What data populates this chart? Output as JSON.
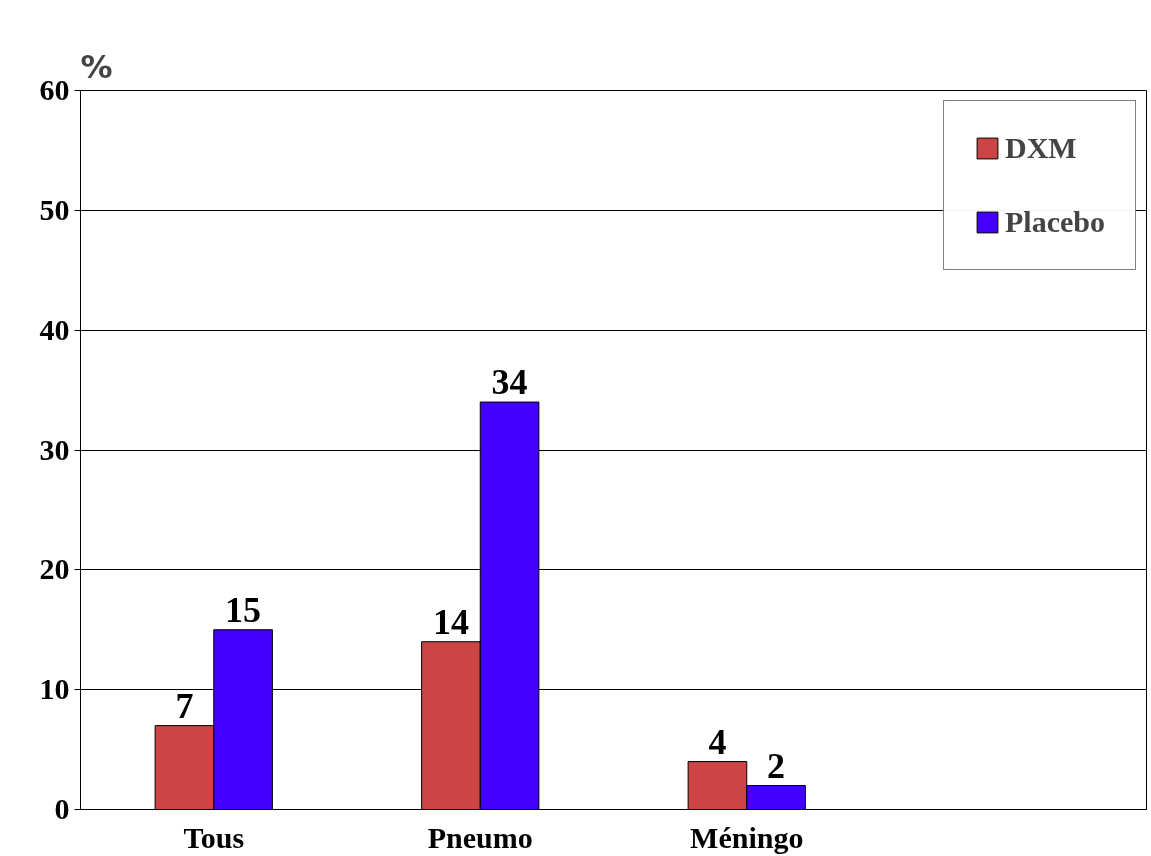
{
  "chart_data": {
    "type": "bar",
    "ylabel": "%",
    "categories": [
      "Tous",
      "Pneumo",
      "Méningo",
      null
    ],
    "series": [
      {
        "name": "DXM",
        "color": "#cc4444",
        "values": [
          7,
          14,
          4,
          null
        ]
      },
      {
        "name": "Placebo",
        "color": "#4400ff",
        "values": [
          15,
          34,
          2,
          null
        ]
      }
    ],
    "ylim": [
      0,
      60
    ],
    "yticks": [
      0,
      10,
      20,
      30,
      40,
      50,
      60
    ],
    "grid": "y",
    "legend": "top right",
    "data_labels": true
  }
}
